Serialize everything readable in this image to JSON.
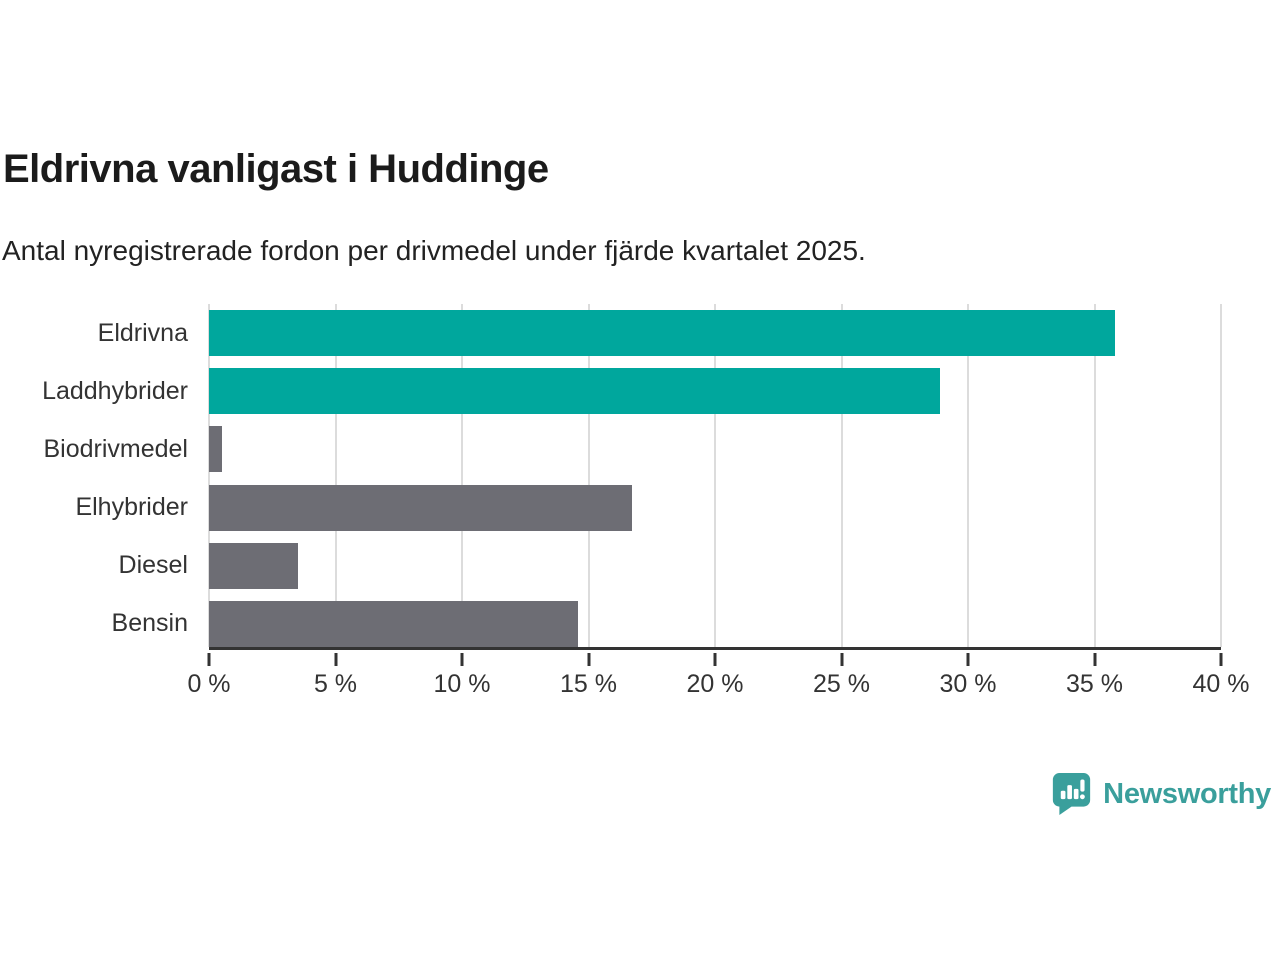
{
  "header": {
    "title": "Eldrivna vanligast i Huddinge",
    "subtitle": "Antal nyregistrerade fordon per drivmedel under fjärde kvartalet 2025."
  },
  "chart_data": {
    "type": "bar",
    "orientation": "horizontal",
    "title": "Eldrivna vanligast i Huddinge",
    "subtitle": "Antal nyregistrerade fordon per drivmedel under fjärde kvartalet 2025.",
    "categories": [
      "Eldrivna",
      "Laddhybrider",
      "Biodrivmedel",
      "Elhybrider",
      "Diesel",
      "Bensin"
    ],
    "values": [
      35.8,
      28.9,
      0.5,
      16.7,
      3.5,
      14.6
    ],
    "unit": "%",
    "xlim": [
      0,
      40
    ],
    "x_tick_step": 5,
    "x_tick_labels": [
      "0 %",
      "5 %",
      "10 %",
      "15 %",
      "20 %",
      "25 %",
      "30 %",
      "35 %",
      "40 %"
    ],
    "bar_colors": [
      "#00a79d",
      "#00a79d",
      "#6d6d74",
      "#6d6d74",
      "#6d6d74",
      "#6d6d74"
    ],
    "grid": true,
    "legend": false,
    "colors": {
      "highlight": "#00a79d",
      "neutral": "#6d6d74",
      "gridline": "#dcdcdc",
      "axis": "#333333",
      "text": "#333333"
    }
  },
  "footer": {
    "brand": "Newsworthy",
    "brand_color": "#3a9f9c",
    "logo_icon": "speech-bubble-bar-chart-icon"
  }
}
